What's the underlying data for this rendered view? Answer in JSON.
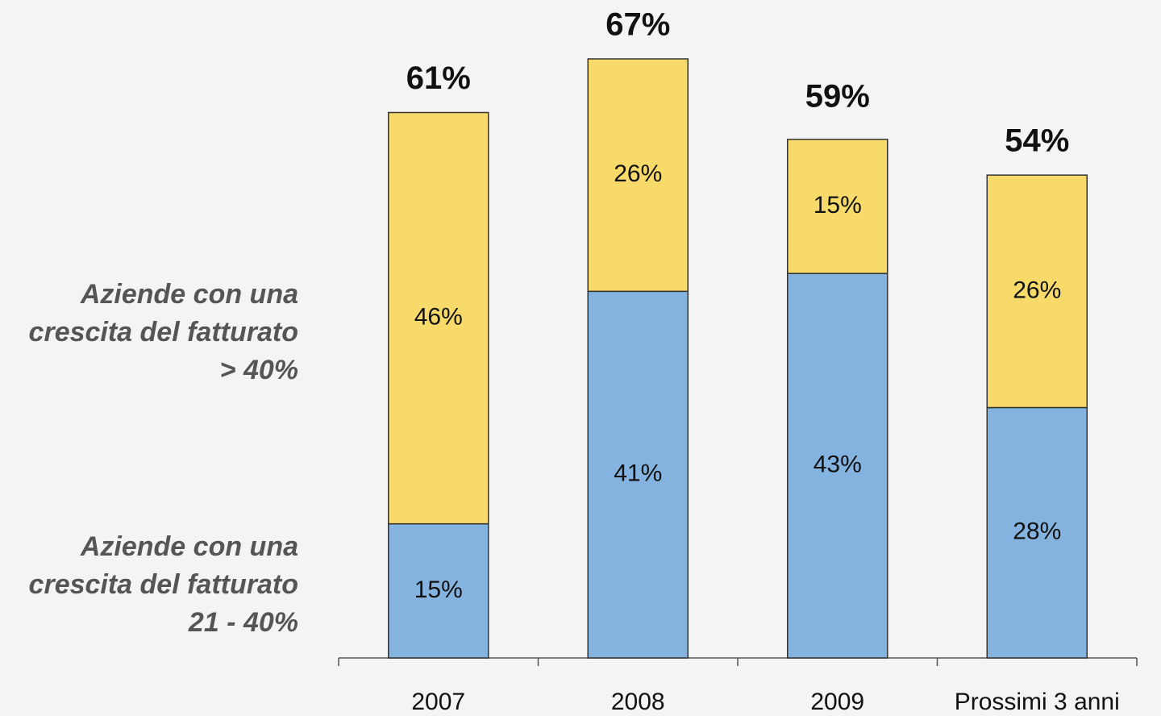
{
  "chart_data": {
    "type": "stacked_bar",
    "categories": [
      "2007",
      "2008",
      "2009",
      "Prossimi 3 anni"
    ],
    "series": [
      {
        "name": "Aziende con una crescita del fatturato 21 - 40%",
        "color": "#85b3e0",
        "values": [
          15,
          41,
          43,
          28
        ],
        "value_labels": [
          "15%",
          "41%",
          "43%",
          "28%"
        ]
      },
      {
        "name": "Aziende con una crescita del fatturato  > 40%",
        "color": "#f7da6a",
        "values": [
          46,
          26,
          15,
          26
        ],
        "value_labels": [
          "46%",
          "26%",
          "15%",
          "26%"
        ]
      }
    ],
    "totals": [
      61,
      67,
      59,
      54
    ],
    "total_labels": [
      "61%",
      "67%",
      "59%",
      "54%"
    ]
  }
}
